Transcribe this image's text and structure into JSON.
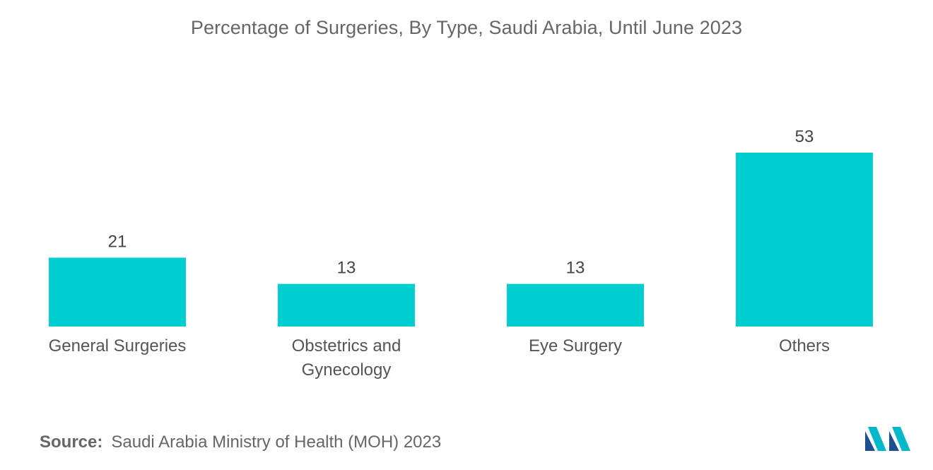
{
  "chart_data": {
    "type": "bar",
    "title": "Percentage of Surgeries, By Type, Saudi Arabia, Until June 2023",
    "categories": [
      "General Surgeries",
      "Obstetrics and Gynecology",
      "Eye Surgery",
      "Others"
    ],
    "category_lines": [
      [
        "General Surgeries"
      ],
      [
        "Obstetrics and",
        "Gynecology"
      ],
      [
        "Eye Surgery"
      ],
      [
        "Others"
      ]
    ],
    "values": [
      21,
      13,
      13,
      53
    ],
    "xlabel": "",
    "ylabel": "",
    "ylim": [
      0,
      53
    ],
    "grid": false,
    "bar_color": "#00ced1"
  },
  "source": {
    "label": "Source:",
    "text": "Saudi Arabia Ministry of Health (MOH) 2023"
  },
  "logo": {
    "icon": "mordor-intelligence-logo-icon",
    "colors": [
      "#1d4f91",
      "#00b8c8"
    ]
  }
}
